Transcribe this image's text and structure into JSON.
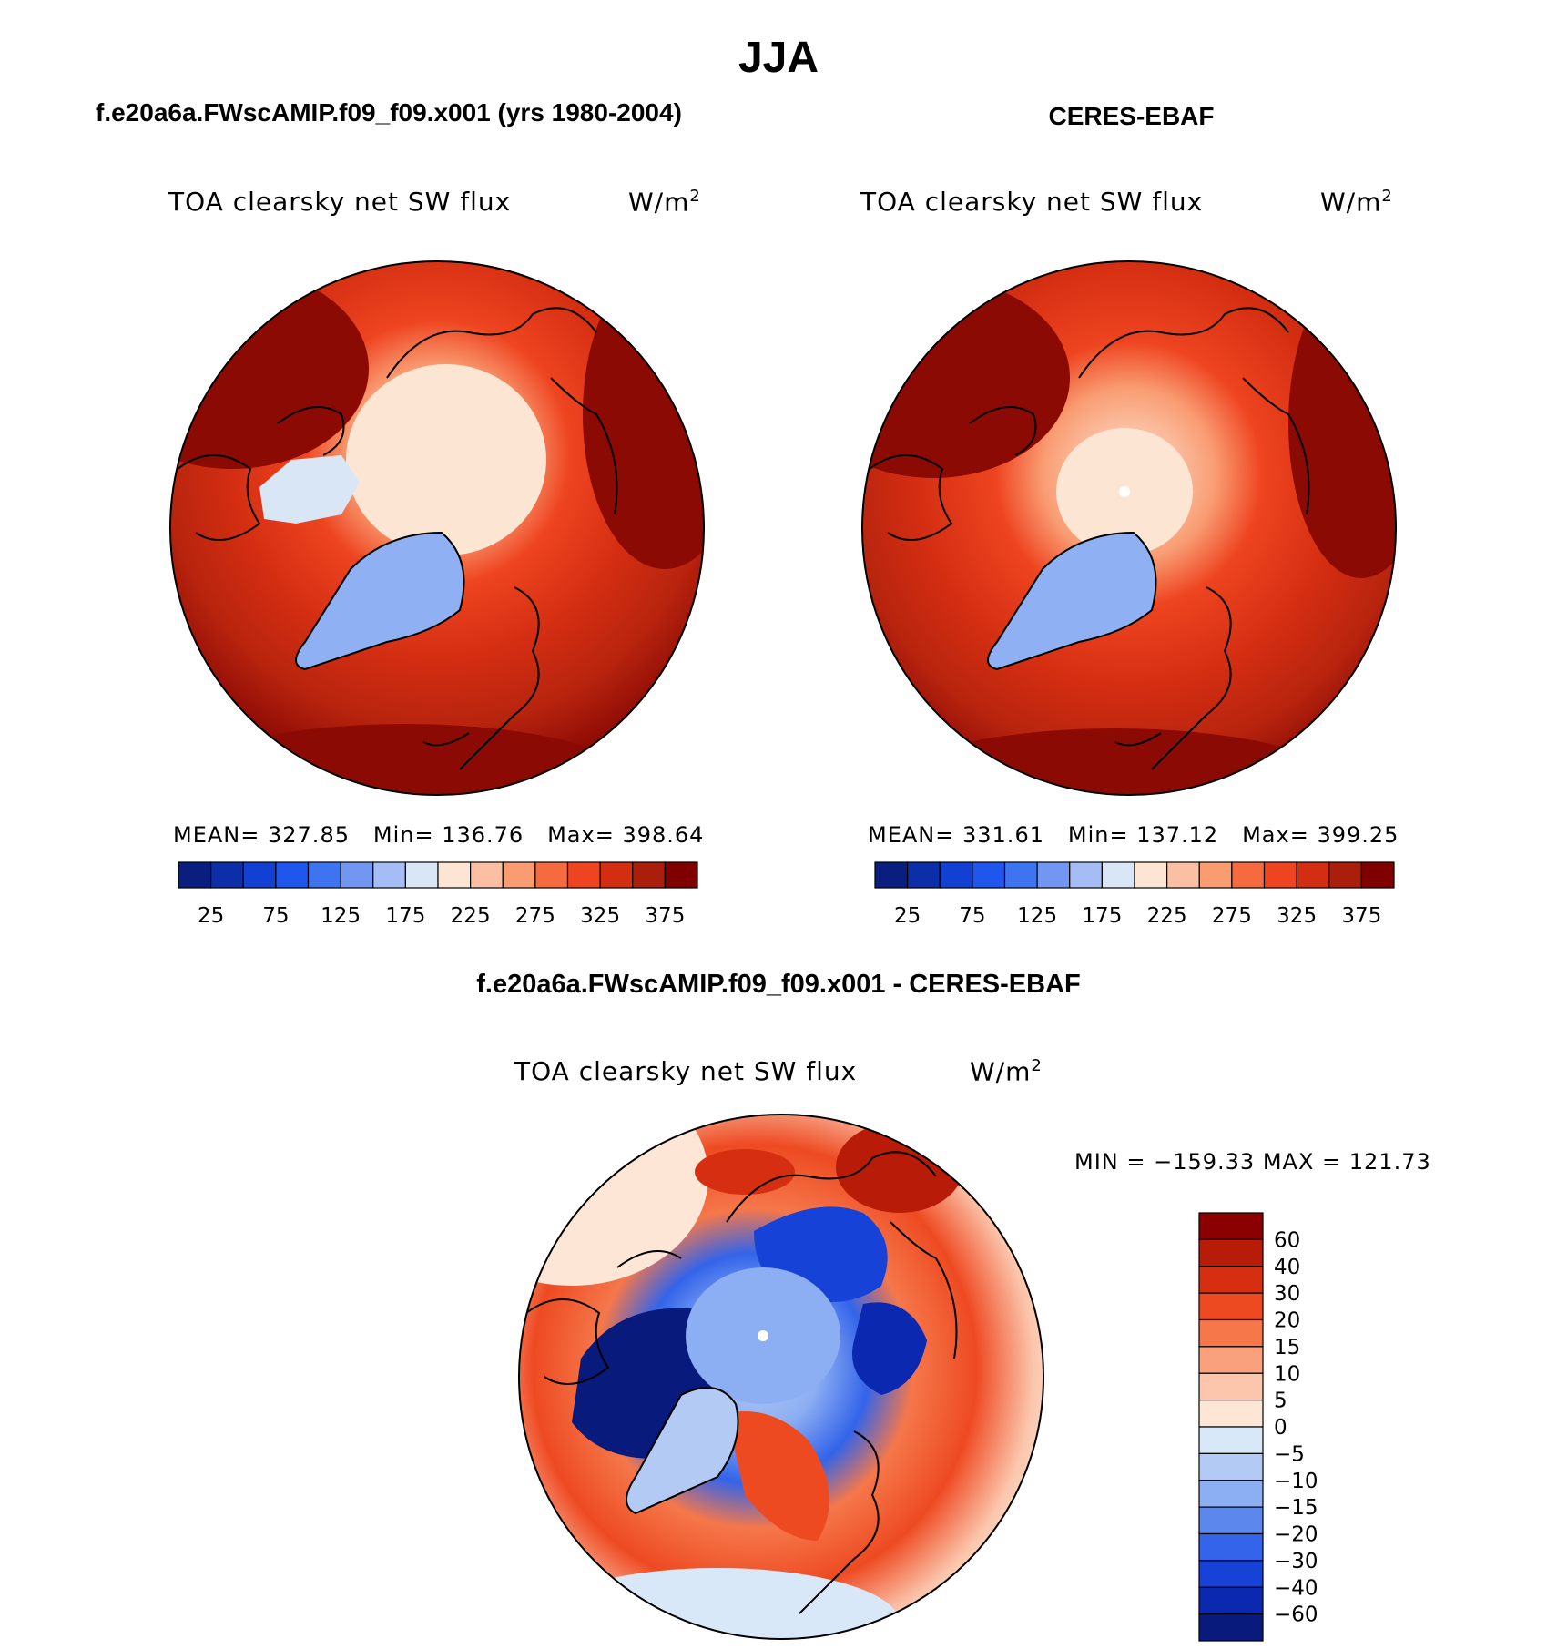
{
  "figure": {
    "season_title": "JJA"
  },
  "panels": [
    {
      "case_title": "f.e20a6a.FWscAMIP.f09_f09.x001 (yrs 1980-2004)",
      "field_label": "TOA clearsky net SW flux",
      "units_base": "W/m",
      "units_exp": "2",
      "stats": {
        "mean_label": "MEAN=",
        "mean": "327.85",
        "min_label": "Min=",
        "min": "136.76",
        "max_label": "Max=",
        "max": "398.64"
      }
    },
    {
      "case_title": "CERES-EBAF",
      "field_label": "TOA clearsky net SW flux",
      "units_base": "W/m",
      "units_exp": "2",
      "stats": {
        "mean_label": "MEAN=",
        "mean": "331.61",
        "min_label": "Min=",
        "min": "137.12",
        "max_label": "Max=",
        "max": "399.25"
      }
    }
  ],
  "diff_panel": {
    "case_title": "f.e20a6a.FWscAMIP.f09_f09.x001 - CERES-EBAF",
    "field_label": "TOA clearsky net SW flux",
    "units_base": "W/m",
    "units_exp": "2",
    "minmax": "MIN = −159.33 MAX = 121.73"
  },
  "chart_data": [
    {
      "type": "heatmap",
      "projection": "north-polar-stereographic",
      "title": "f.e20a6a.FWscAMIP.f09_f09.x001 (yrs 1980-2004)",
      "variable": "TOA clearsky net SW flux",
      "units": "W/m2",
      "mean": 327.85,
      "min": 136.76,
      "max": 398.64,
      "colorbar": {
        "orientation": "horizontal",
        "tick_labels": [
          "25",
          "75",
          "125",
          "175",
          "225",
          "275",
          "325",
          "375"
        ],
        "colors": [
          "#0a1e80",
          "#0c2ea8",
          "#1240d2",
          "#1f56ee",
          "#3f74f0",
          "#7197f2",
          "#a5bdf4",
          "#d8e6f6",
          "#fde5d4",
          "#fbc0a3",
          "#f99c72",
          "#f56a3e",
          "#ee4420",
          "#d42e12",
          "#aa1e0c",
          "#800000"
        ]
      }
    },
    {
      "type": "heatmap",
      "projection": "north-polar-stereographic",
      "title": "CERES-EBAF",
      "variable": "TOA clearsky net SW flux",
      "units": "W/m2",
      "mean": 331.61,
      "min": 137.12,
      "max": 399.25,
      "colorbar": {
        "orientation": "horizontal",
        "tick_labels": [
          "25",
          "75",
          "125",
          "175",
          "225",
          "275",
          "325",
          "375"
        ],
        "colors": [
          "#0a1e80",
          "#0c2ea8",
          "#1240d2",
          "#1f56ee",
          "#3f74f0",
          "#7197f2",
          "#a5bdf4",
          "#d8e6f6",
          "#fde5d4",
          "#fbc0a3",
          "#f99c72",
          "#f56a3e",
          "#ee4420",
          "#d42e12",
          "#aa1e0c",
          "#800000"
        ]
      }
    },
    {
      "type": "heatmap",
      "projection": "north-polar-stereographic",
      "title": "f.e20a6a.FWscAMIP.f09_f09.x001 - CERES-EBAF",
      "variable": "TOA clearsky net SW flux",
      "units": "W/m2",
      "min": -159.33,
      "max": 121.73,
      "colorbar": {
        "orientation": "vertical",
        "tick_labels": [
          "60",
          "40",
          "30",
          "20",
          "15",
          "10",
          "5",
          "0",
          "−5",
          "−10",
          "−15",
          "−20",
          "−30",
          "−40",
          "−60"
        ],
        "colors": [
          "#8b0000",
          "#b81c08",
          "#d62e10",
          "#ee4a22",
          "#f5774a",
          "#f9a07c",
          "#fbc6ac",
          "#fde6d6",
          "#d9e8f8",
          "#b3cbf4",
          "#8caef2",
          "#5c88ee",
          "#3364ea",
          "#1742d8",
          "#0a28b0",
          "#081a7c"
        ]
      }
    }
  ]
}
